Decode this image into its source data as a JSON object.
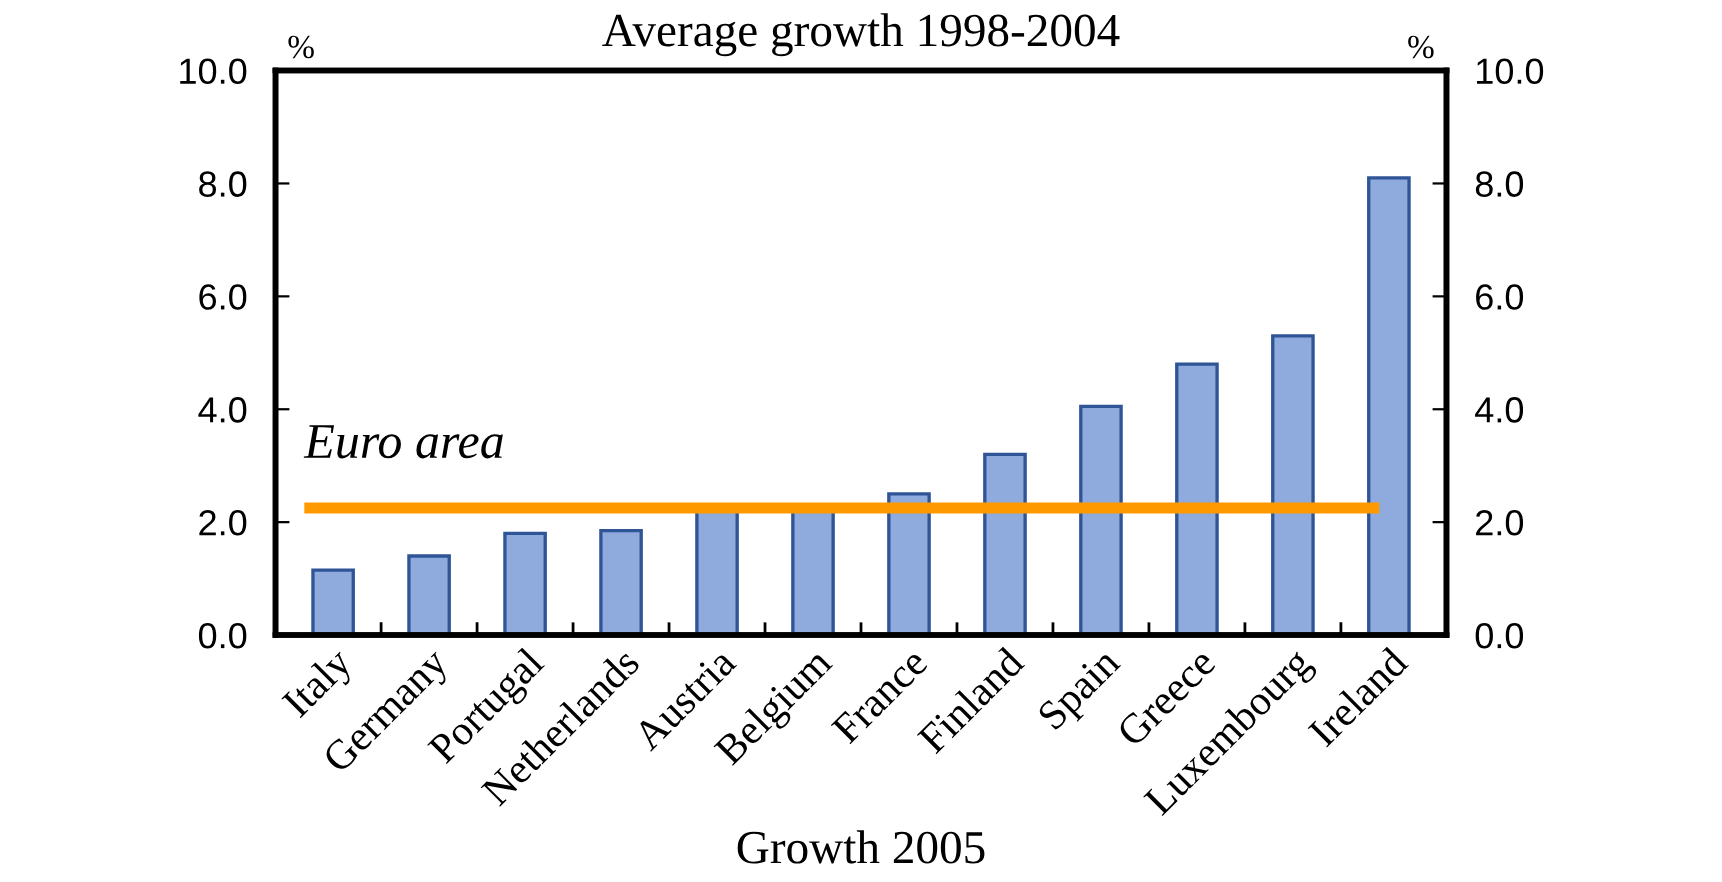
{
  "chart_data": {
    "type": "bar",
    "title": "Average growth 1998-2004",
    "ylabel": "%",
    "y2label": "%",
    "categories": [
      "Italy",
      "Germany",
      "Portugal",
      "Netherlands",
      "Austria",
      "Belgium",
      "France",
      "Finland",
      "Spain",
      "Greece",
      "Luxembourg",
      "Ireland"
    ],
    "values": [
      1.15,
      1.4,
      1.8,
      1.85,
      2.2,
      2.2,
      2.5,
      3.2,
      4.05,
      4.8,
      5.3,
      8.1
    ],
    "color": "#8faadc",
    "ylim": [
      0,
      10
    ],
    "yticks": [
      {
        "value": 0,
        "label": "0.0"
      },
      {
        "value": 2,
        "label": "2.0"
      },
      {
        "value": 4,
        "label": "4.0"
      },
      {
        "value": 6,
        "label": "6.0"
      },
      {
        "value": 8,
        "label": "8.0"
      },
      {
        "value": 10,
        "label": "10.0"
      }
    ],
    "y2lim": [
      0,
      10
    ],
    "y2ticks": [
      {
        "value": 0,
        "label": "0.0"
      },
      {
        "value": 2,
        "label": "2.0"
      },
      {
        "value": 4,
        "label": "4.0"
      },
      {
        "value": 6,
        "label": "6.0"
      },
      {
        "value": 8,
        "label": "8.0"
      },
      {
        "value": 10,
        "label": "10.0"
      }
    ],
    "ref_lines": [
      {
        "axis": "y",
        "value": 2.25,
        "label": "Euro area",
        "color": "#ff9900"
      }
    ],
    "annotations": [
      "Growth 2005"
    ],
    "grid": false,
    "legend": false
  }
}
